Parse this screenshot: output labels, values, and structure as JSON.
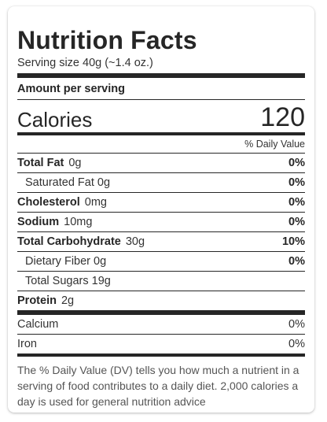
{
  "label": {
    "title": "Nutrition Facts",
    "serving_size": "Serving size 40g (~1.4 oz.)",
    "amount_per_serving": "Amount per serving",
    "calories_label": "Calories",
    "calories_value": "120",
    "daily_value_header": "% Daily Value",
    "nutrients": [
      {
        "name": "Total Fat",
        "amount": "0g",
        "dv": "0%"
      },
      {
        "name": "Saturated Fat 0g",
        "dv": "0%"
      },
      {
        "name": "Cholesterol",
        "amount": "0mg",
        "dv": "0%"
      },
      {
        "name": "Sodium",
        "amount": "10mg",
        "dv": "0%"
      },
      {
        "name": "Total Carbohydrate",
        "amount": "30g",
        "dv": "10%"
      },
      {
        "name": "Dietary Fiber 0g",
        "dv": "0%"
      },
      {
        "name": "Total Sugars 19g"
      },
      {
        "name": "Protein",
        "amount": "2g"
      }
    ],
    "vitamins": [
      {
        "name": "Calcium",
        "dv": "0%"
      },
      {
        "name": "Iron",
        "dv": "0%"
      }
    ],
    "footnote": "The % Daily Value (DV) tells you how much a nutrient in a serving of food contributes to a daily diet. 2,000 calories a day is used for general nutrition advice"
  }
}
